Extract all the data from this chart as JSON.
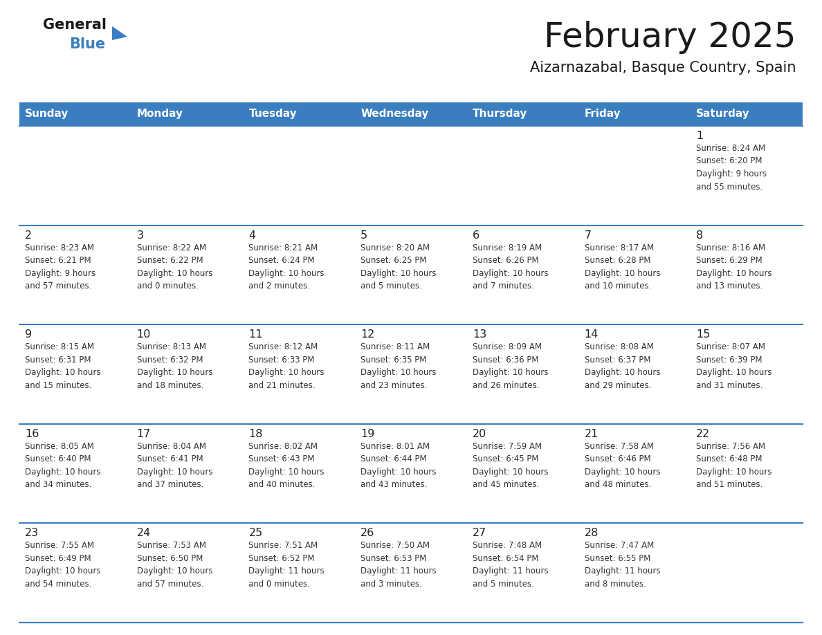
{
  "title": "February 2025",
  "subtitle": "Aizarnazabal, Basque Country, Spain",
  "header_bg_color": "#3a7ebf",
  "header_text_color": "#ffffff",
  "cell_bg_color": "#ffffff",
  "grid_line_color": "#3a7ebf",
  "days_of_week": [
    "Sunday",
    "Monday",
    "Tuesday",
    "Wednesday",
    "Thursday",
    "Friday",
    "Saturday"
  ],
  "weeks": [
    [
      {
        "day": null,
        "info": null
      },
      {
        "day": null,
        "info": null
      },
      {
        "day": null,
        "info": null
      },
      {
        "day": null,
        "info": null
      },
      {
        "day": null,
        "info": null
      },
      {
        "day": null,
        "info": null
      },
      {
        "day": 1,
        "info": "Sunrise: 8:24 AM\nSunset: 6:20 PM\nDaylight: 9 hours\nand 55 minutes."
      }
    ],
    [
      {
        "day": 2,
        "info": "Sunrise: 8:23 AM\nSunset: 6:21 PM\nDaylight: 9 hours\nand 57 minutes."
      },
      {
        "day": 3,
        "info": "Sunrise: 8:22 AM\nSunset: 6:22 PM\nDaylight: 10 hours\nand 0 minutes."
      },
      {
        "day": 4,
        "info": "Sunrise: 8:21 AM\nSunset: 6:24 PM\nDaylight: 10 hours\nand 2 minutes."
      },
      {
        "day": 5,
        "info": "Sunrise: 8:20 AM\nSunset: 6:25 PM\nDaylight: 10 hours\nand 5 minutes."
      },
      {
        "day": 6,
        "info": "Sunrise: 8:19 AM\nSunset: 6:26 PM\nDaylight: 10 hours\nand 7 minutes."
      },
      {
        "day": 7,
        "info": "Sunrise: 8:17 AM\nSunset: 6:28 PM\nDaylight: 10 hours\nand 10 minutes."
      },
      {
        "day": 8,
        "info": "Sunrise: 8:16 AM\nSunset: 6:29 PM\nDaylight: 10 hours\nand 13 minutes."
      }
    ],
    [
      {
        "day": 9,
        "info": "Sunrise: 8:15 AM\nSunset: 6:31 PM\nDaylight: 10 hours\nand 15 minutes."
      },
      {
        "day": 10,
        "info": "Sunrise: 8:13 AM\nSunset: 6:32 PM\nDaylight: 10 hours\nand 18 minutes."
      },
      {
        "day": 11,
        "info": "Sunrise: 8:12 AM\nSunset: 6:33 PM\nDaylight: 10 hours\nand 21 minutes."
      },
      {
        "day": 12,
        "info": "Sunrise: 8:11 AM\nSunset: 6:35 PM\nDaylight: 10 hours\nand 23 minutes."
      },
      {
        "day": 13,
        "info": "Sunrise: 8:09 AM\nSunset: 6:36 PM\nDaylight: 10 hours\nand 26 minutes."
      },
      {
        "day": 14,
        "info": "Sunrise: 8:08 AM\nSunset: 6:37 PM\nDaylight: 10 hours\nand 29 minutes."
      },
      {
        "day": 15,
        "info": "Sunrise: 8:07 AM\nSunset: 6:39 PM\nDaylight: 10 hours\nand 31 minutes."
      }
    ],
    [
      {
        "day": 16,
        "info": "Sunrise: 8:05 AM\nSunset: 6:40 PM\nDaylight: 10 hours\nand 34 minutes."
      },
      {
        "day": 17,
        "info": "Sunrise: 8:04 AM\nSunset: 6:41 PM\nDaylight: 10 hours\nand 37 minutes."
      },
      {
        "day": 18,
        "info": "Sunrise: 8:02 AM\nSunset: 6:43 PM\nDaylight: 10 hours\nand 40 minutes."
      },
      {
        "day": 19,
        "info": "Sunrise: 8:01 AM\nSunset: 6:44 PM\nDaylight: 10 hours\nand 43 minutes."
      },
      {
        "day": 20,
        "info": "Sunrise: 7:59 AM\nSunset: 6:45 PM\nDaylight: 10 hours\nand 45 minutes."
      },
      {
        "day": 21,
        "info": "Sunrise: 7:58 AM\nSunset: 6:46 PM\nDaylight: 10 hours\nand 48 minutes."
      },
      {
        "day": 22,
        "info": "Sunrise: 7:56 AM\nSunset: 6:48 PM\nDaylight: 10 hours\nand 51 minutes."
      }
    ],
    [
      {
        "day": 23,
        "info": "Sunrise: 7:55 AM\nSunset: 6:49 PM\nDaylight: 10 hours\nand 54 minutes."
      },
      {
        "day": 24,
        "info": "Sunrise: 7:53 AM\nSunset: 6:50 PM\nDaylight: 10 hours\nand 57 minutes."
      },
      {
        "day": 25,
        "info": "Sunrise: 7:51 AM\nSunset: 6:52 PM\nDaylight: 11 hours\nand 0 minutes."
      },
      {
        "day": 26,
        "info": "Sunrise: 7:50 AM\nSunset: 6:53 PM\nDaylight: 11 hours\nand 3 minutes."
      },
      {
        "day": 27,
        "info": "Sunrise: 7:48 AM\nSunset: 6:54 PM\nDaylight: 11 hours\nand 5 minutes."
      },
      {
        "day": 28,
        "info": "Sunrise: 7:47 AM\nSunset: 6:55 PM\nDaylight: 11 hours\nand 8 minutes."
      },
      {
        "day": null,
        "info": null
      }
    ]
  ]
}
